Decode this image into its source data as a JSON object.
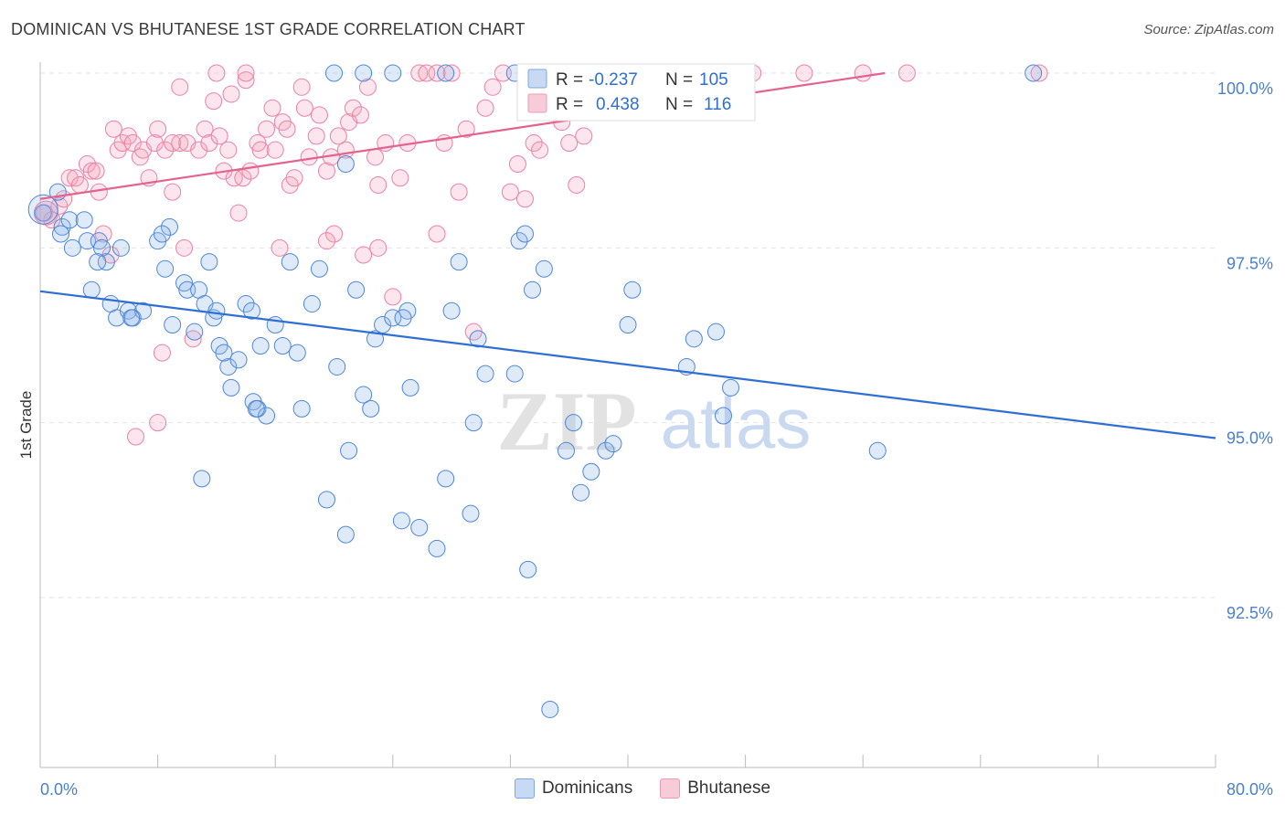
{
  "title": "DOMINICAN VS BHUTANESE 1ST GRADE CORRELATION CHART",
  "source": "Source: ZipAtlas.com",
  "watermark": {
    "zip": "ZIP",
    "atlas": "atlas"
  },
  "legend": {
    "series": [
      {
        "r_label": "R =",
        "r_value": "-0.237",
        "n_label": "N =",
        "n_value": "105"
      },
      {
        "r_label": "R =",
        "r_value": "0.438",
        "n_label": "N =",
        "n_value": "116"
      }
    ]
  },
  "bottom_legend": [
    "Dominicans",
    "Bhutanese"
  ],
  "colors": {
    "blue": "#4e86d8",
    "blue_line": "#2f6fd1",
    "pink": "#ec80a3",
    "pink_line": "#e4628e",
    "tick_label": "#4a7fd0"
  },
  "chart_data": {
    "type": "scatter",
    "title": "DOMINICAN VS BHUTANESE 1ST GRADE CORRELATION CHART",
    "xlabel": "",
    "ylabel": "1st Grade",
    "xlim": [
      0,
      80
    ],
    "ylim": [
      90.5,
      100.5
    ],
    "x_tick_labels": [
      "0.0%",
      "80.0%"
    ],
    "y_ticks": [
      100.0,
      97.5,
      95.0,
      92.5
    ],
    "y_tick_labels": [
      "100.0%",
      "97.5%",
      "95.0%",
      "92.5%"
    ],
    "grid": true,
    "series": [
      {
        "name": "Dominicans",
        "r": -0.237,
        "n": 105,
        "trend": {
          "x": [
            0,
            80
          ],
          "y": [
            96.88,
            94.78
          ]
        },
        "points": [
          [
            0.2,
            98.0
          ],
          [
            1.2,
            98.3
          ],
          [
            1.5,
            97.8
          ],
          [
            2.0,
            97.9
          ],
          [
            3.0,
            97.9
          ],
          [
            3.2,
            97.6
          ],
          [
            4.0,
            97.6
          ],
          [
            4.5,
            97.3
          ],
          [
            4.2,
            97.5
          ],
          [
            5.5,
            97.5
          ],
          [
            3.5,
            96.9
          ],
          [
            4.8,
            96.7
          ],
          [
            5.2,
            96.5
          ],
          [
            6.0,
            96.6
          ],
          [
            6.3,
            96.5
          ],
          [
            7.0,
            96.6
          ],
          [
            8.0,
            97.6
          ],
          [
            8.5,
            97.2
          ],
          [
            8.8,
            97.8
          ],
          [
            8.3,
            97.7
          ],
          [
            9.0,
            96.4
          ],
          [
            9.8,
            97.0
          ],
          [
            10.0,
            96.9
          ],
          [
            10.5,
            96.3
          ],
          [
            10.8,
            96.9
          ],
          [
            11.5,
            97.3
          ],
          [
            11.2,
            96.7
          ],
          [
            11.8,
            96.5
          ],
          [
            12.0,
            96.6
          ],
          [
            12.2,
            96.1
          ],
          [
            12.8,
            95.8
          ],
          [
            13.0,
            95.5
          ],
          [
            13.5,
            95.9
          ],
          [
            14.0,
            96.7
          ],
          [
            14.4,
            96.6
          ],
          [
            14.5,
            95.3
          ],
          [
            14.8,
            95.2
          ],
          [
            15.0,
            96.1
          ],
          [
            15.4,
            95.1
          ],
          [
            16.0,
            96.4
          ],
          [
            16.5,
            96.1
          ],
          [
            17.0,
            97.3
          ],
          [
            17.5,
            96.0
          ],
          [
            17.8,
            95.2
          ],
          [
            18.5,
            96.7
          ],
          [
            19.0,
            97.2
          ],
          [
            19.5,
            93.9
          ],
          [
            20.2,
            95.8
          ],
          [
            20.8,
            93.4
          ],
          [
            21.0,
            94.6
          ],
          [
            21.5,
            96.9
          ],
          [
            22.0,
            95.4
          ],
          [
            22.5,
            95.2
          ],
          [
            22.8,
            96.2
          ],
          [
            23.3,
            96.4
          ],
          [
            24.0,
            96.5
          ],
          [
            24.6,
            93.6
          ],
          [
            25.0,
            96.6
          ],
          [
            25.2,
            95.5
          ],
          [
            25.8,
            93.5
          ],
          [
            27.0,
            93.2
          ],
          [
            27.6,
            94.2
          ],
          [
            28.0,
            96.6
          ],
          [
            28.5,
            97.3
          ],
          [
            29.3,
            93.7
          ],
          [
            29.5,
            95.0
          ],
          [
            29.8,
            96.2
          ],
          [
            30.3,
            95.7
          ],
          [
            32.3,
            95.7
          ],
          [
            32.6,
            97.6
          ],
          [
            33.0,
            97.7
          ],
          [
            33.2,
            92.9
          ],
          [
            33.5,
            96.9
          ],
          [
            34.3,
            97.2
          ],
          [
            35.8,
            94.6
          ],
          [
            36.3,
            95.0
          ],
          [
            36.8,
            94.0
          ],
          [
            37.5,
            94.3
          ],
          [
            38.5,
            94.6
          ],
          [
            39.0,
            94.7
          ],
          [
            40.0,
            96.4
          ],
          [
            40.3,
            96.9
          ],
          [
            44.0,
            95.8
          ],
          [
            44.5,
            96.2
          ],
          [
            46.0,
            96.3
          ],
          [
            46.5,
            95.1
          ],
          [
            47.0,
            95.5
          ],
          [
            34.7,
            90.9
          ],
          [
            57.0,
            94.6
          ],
          [
            20.8,
            98.7
          ],
          [
            11.0,
            94.2
          ],
          [
            12.5,
            96.0
          ],
          [
            6.2,
            96.5
          ],
          [
            1.4,
            97.7
          ],
          [
            2.2,
            97.5
          ],
          [
            24.0,
            100.0
          ],
          [
            27.6,
            100.0
          ],
          [
            42.2,
            100.0
          ],
          [
            22.0,
            100.0
          ],
          [
            32.3,
            100.0
          ],
          [
            67.6,
            100.0
          ],
          [
            20.0,
            100.0
          ],
          [
            14.7,
            95.2
          ],
          [
            24.7,
            96.5
          ],
          [
            3.9,
            97.3
          ]
        ]
      },
      {
        "name": "Bhutanese",
        "r": 0.438,
        "n": 116,
        "trend": {
          "x": [
            0,
            57.5
          ],
          "y": [
            98.2,
            100.0
          ]
        },
        "points": [
          [
            0.3,
            98.0
          ],
          [
            0.8,
            97.9
          ],
          [
            1.3,
            98.1
          ],
          [
            1.6,
            98.2
          ],
          [
            2.0,
            98.5
          ],
          [
            2.4,
            98.5
          ],
          [
            2.7,
            98.4
          ],
          [
            3.2,
            98.7
          ],
          [
            3.5,
            98.6
          ],
          [
            3.8,
            98.6
          ],
          [
            4.0,
            98.3
          ],
          [
            4.3,
            97.7
          ],
          [
            4.8,
            97.4
          ],
          [
            5.0,
            99.2
          ],
          [
            5.3,
            98.9
          ],
          [
            5.6,
            99.0
          ],
          [
            6.0,
            99.1
          ],
          [
            6.3,
            99.0
          ],
          [
            6.8,
            98.8
          ],
          [
            7.0,
            98.9
          ],
          [
            7.4,
            98.5
          ],
          [
            7.8,
            99.0
          ],
          [
            8.0,
            99.2
          ],
          [
            8.5,
            98.9
          ],
          [
            9.0,
            99.0
          ],
          [
            9.5,
            99.0
          ],
          [
            9.8,
            97.5
          ],
          [
            10.0,
            99.0
          ],
          [
            10.4,
            96.2
          ],
          [
            10.8,
            98.9
          ],
          [
            11.2,
            99.2
          ],
          [
            11.5,
            99.0
          ],
          [
            11.8,
            99.6
          ],
          [
            12.2,
            99.1
          ],
          [
            12.5,
            98.6
          ],
          [
            12.8,
            98.9
          ],
          [
            13.0,
            99.7
          ],
          [
            13.2,
            98.5
          ],
          [
            13.5,
            98.0
          ],
          [
            13.8,
            98.5
          ],
          [
            14.0,
            99.9
          ],
          [
            14.3,
            98.6
          ],
          [
            14.8,
            99.0
          ],
          [
            15.0,
            98.9
          ],
          [
            15.4,
            99.2
          ],
          [
            15.8,
            99.5
          ],
          [
            16.0,
            98.9
          ],
          [
            16.5,
            99.3
          ],
          [
            16.8,
            99.2
          ],
          [
            17.0,
            98.4
          ],
          [
            17.3,
            98.5
          ],
          [
            17.8,
            99.8
          ],
          [
            18.0,
            99.5
          ],
          [
            18.3,
            98.8
          ],
          [
            18.8,
            99.1
          ],
          [
            19.0,
            99.4
          ],
          [
            19.5,
            98.6
          ],
          [
            19.8,
            98.8
          ],
          [
            20.0,
            97.7
          ],
          [
            20.3,
            99.1
          ],
          [
            20.8,
            98.9
          ],
          [
            21.0,
            99.3
          ],
          [
            21.3,
            99.5
          ],
          [
            21.8,
            99.4
          ],
          [
            22.0,
            97.4
          ],
          [
            22.3,
            99.8
          ],
          [
            22.8,
            98.8
          ],
          [
            23.0,
            98.4
          ],
          [
            23.5,
            99.0
          ],
          [
            24.0,
            96.8
          ],
          [
            24.5,
            98.5
          ],
          [
            25.0,
            99.0
          ],
          [
            25.8,
            100.0
          ],
          [
            26.3,
            100.0
          ],
          [
            27.0,
            97.7
          ],
          [
            27.5,
            99.0
          ],
          [
            28.0,
            100.0
          ],
          [
            28.5,
            98.3
          ],
          [
            29.0,
            99.2
          ],
          [
            29.5,
            96.3
          ],
          [
            30.3,
            99.5
          ],
          [
            30.8,
            99.8
          ],
          [
            31.5,
            100.0
          ],
          [
            32.0,
            98.3
          ],
          [
            32.5,
            98.7
          ],
          [
            33.0,
            98.2
          ],
          [
            33.6,
            99.0
          ],
          [
            34.0,
            98.9
          ],
          [
            35.0,
            99.5
          ],
          [
            35.5,
            99.3
          ],
          [
            36.0,
            99.0
          ],
          [
            36.5,
            98.4
          ],
          [
            37.0,
            99.1
          ],
          [
            38.0,
            99.5
          ],
          [
            38.5,
            99.8
          ],
          [
            39.0,
            100.0
          ],
          [
            40.0,
            100.0
          ],
          [
            42.0,
            100.0
          ],
          [
            45.0,
            100.0
          ],
          [
            48.0,
            99.8
          ],
          [
            52.0,
            100.0
          ],
          [
            59.0,
            100.0
          ],
          [
            68.0,
            100.0
          ],
          [
            56.0,
            100.0
          ],
          [
            48.5,
            100.0
          ],
          [
            12.0,
            100.0
          ],
          [
            14.0,
            100.0
          ],
          [
            9.5,
            99.8
          ],
          [
            9.0,
            98.3
          ],
          [
            27.0,
            100.0
          ],
          [
            34.5,
            100.0
          ],
          [
            23.0,
            97.5
          ],
          [
            19.5,
            97.6
          ],
          [
            16.3,
            97.5
          ],
          [
            8.0,
            95.0
          ],
          [
            6.5,
            94.8
          ],
          [
            8.3,
            96.0
          ]
        ]
      }
    ]
  }
}
